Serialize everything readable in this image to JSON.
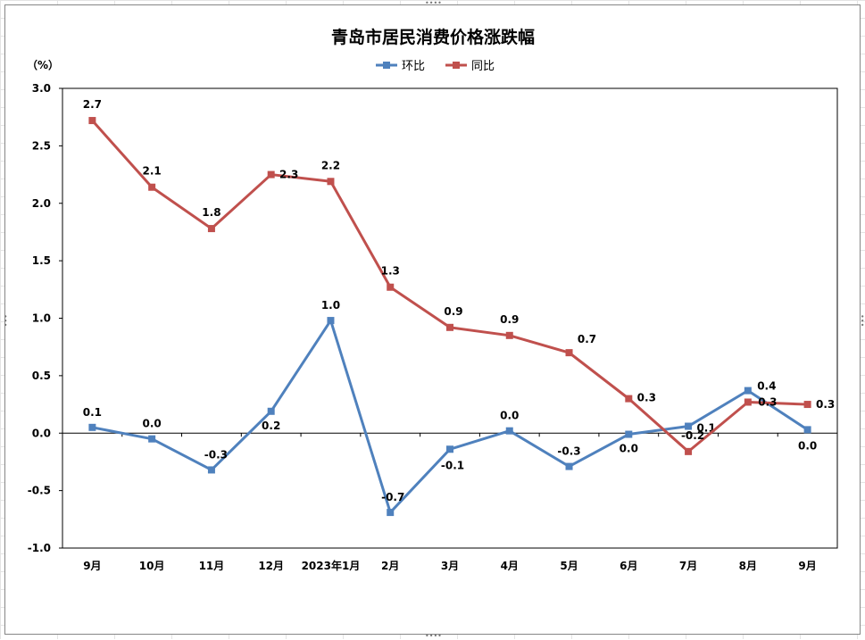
{
  "chart_data": {
    "type": "line",
    "title": "青岛市居民消费价格涨跌幅",
    "ylabel": "（%）",
    "xlabel": "",
    "categories": [
      "9月",
      "10月",
      "11月",
      "12月",
      "2023年1月",
      "2月",
      "3月",
      "4月",
      "5月",
      "6月",
      "7月",
      "8月",
      "9月"
    ],
    "ylim": [
      -1.0,
      3.0
    ],
    "yticks": [
      -1.0,
      -0.5,
      0.0,
      0.5,
      1.0,
      1.5,
      2.0,
      2.5,
      3.0
    ],
    "ytick_labels": [
      "-1.0",
      "-0.5",
      "0.0",
      "0.5",
      "1.0",
      "1.5",
      "2.0",
      "2.5",
      "3.0"
    ],
    "grid": false,
    "legend_position": "top-center",
    "series": [
      {
        "name": "环比",
        "color": "#4F81BD",
        "values": [
          0.05,
          -0.05,
          -0.32,
          0.19,
          0.98,
          -0.69,
          -0.14,
          0.02,
          -0.29,
          -0.01,
          0.06,
          0.37,
          0.03
        ],
        "labels": [
          "0.1",
          "0.0",
          "-0.3",
          "0.2",
          "1.0",
          "-0.7",
          "-0.1",
          "0.0",
          "-0.3",
          "0.0",
          "0.1",
          "0.4",
          "0.0"
        ]
      },
      {
        "name": "同比",
        "color": "#C0504D",
        "values": [
          2.72,
          2.14,
          1.78,
          2.25,
          2.19,
          1.27,
          0.92,
          0.85,
          0.7,
          0.3,
          -0.16,
          0.27,
          0.25
        ],
        "labels": [
          "2.7",
          "2.1",
          "1.8",
          "2.3",
          "2.2",
          "1.3",
          "0.9",
          "0.9",
          "0.7",
          "0.3",
          "-0.2",
          "0.3",
          "0.3"
        ]
      }
    ]
  }
}
